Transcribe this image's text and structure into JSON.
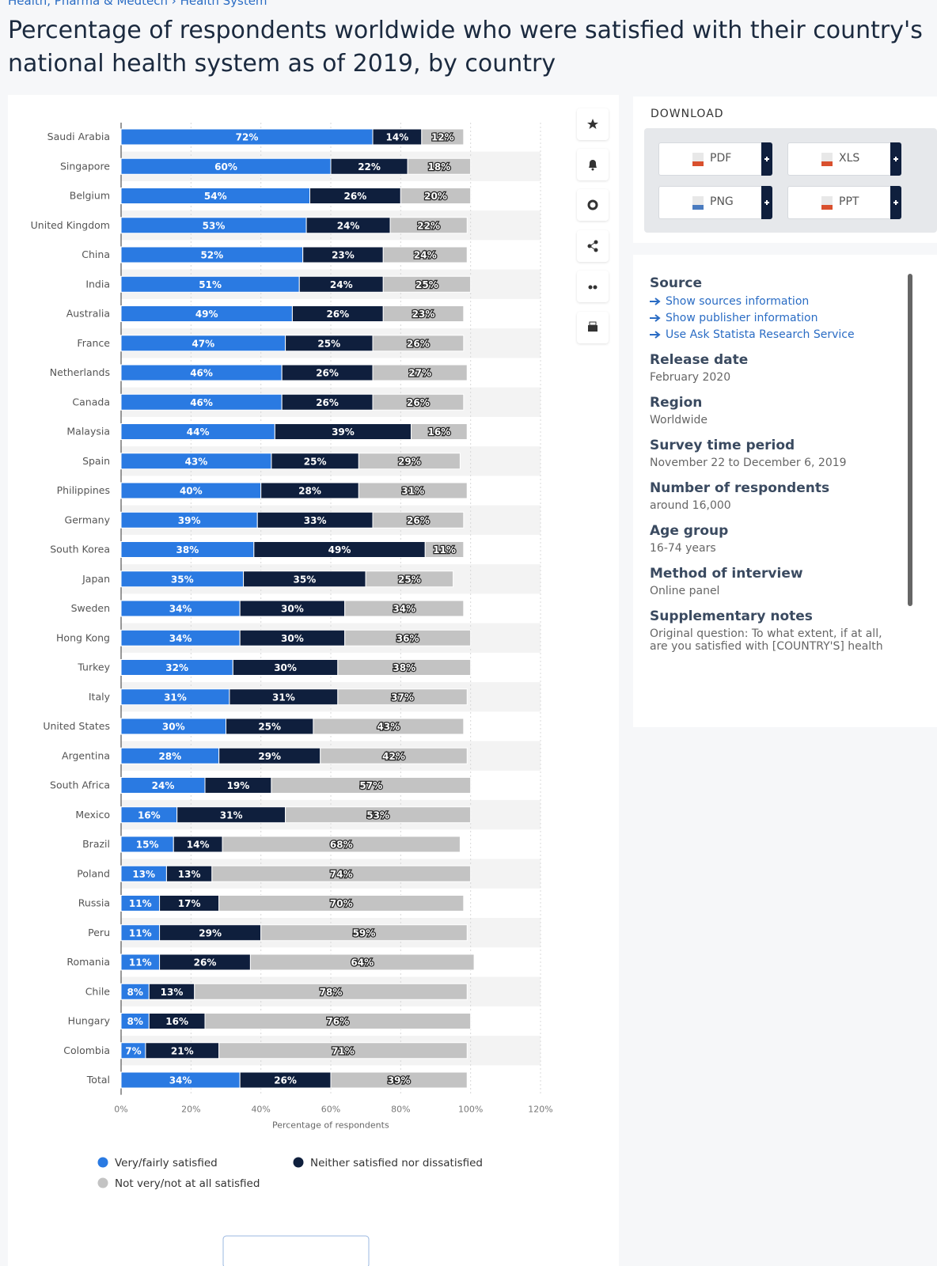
{
  "breadcrumb": [
    "Health, Pharma & Medtech",
    "Health System"
  ],
  "chart_data": {
    "type": "stacked-barh",
    "title": "Percentage of respondents worldwide who were satisfied with their country's national health system as of 2019, by country",
    "xlabel": "Percentage of respondents",
    "categories": [
      "Saudi Arabia",
      "Singapore",
      "Belgium",
      "United Kingdom",
      "China",
      "India",
      "Australia",
      "France",
      "Netherlands",
      "Canada",
      "Malaysia",
      "Spain",
      "Philippines",
      "Germany",
      "South Korea",
      "Japan",
      "Sweden",
      "Hong Kong",
      "Turkey",
      "Italy",
      "United States",
      "Argentina",
      "South Africa",
      "Mexico",
      "Brazil",
      "Poland",
      "Russia",
      "Peru",
      "Romania",
      "Chile",
      "Hungary",
      "Colombia",
      "Total"
    ],
    "series": [
      {
        "name": "Very/fairly satisfied",
        "color": "#2a7ae2",
        "values": [
          72,
          60,
          54,
          53,
          52,
          51,
          49,
          47,
          46,
          46,
          44,
          43,
          40,
          39,
          38,
          35,
          34,
          34,
          32,
          31,
          30,
          28,
          24,
          16,
          15,
          13,
          11,
          11,
          11,
          8,
          8,
          7,
          34
        ],
        "value_labels": [
          "72%",
          "60%",
          "54%",
          "53%",
          "52%",
          "51%",
          "49%",
          "47%",
          "46%",
          "46%",
          "44%",
          "43%",
          "40%",
          "39%",
          "38%",
          "35%",
          "34%",
          "34%",
          "32%",
          "31%",
          "30%",
          "28%",
          "24%",
          "16%",
          "15%",
          "13%",
          "11%",
          "11%",
          "11%",
          "8%",
          "8%",
          "7%",
          "34%"
        ]
      },
      {
        "name": "Neither satisfied nor dissatisfied",
        "color": "#0f1f3d",
        "values": [
          14,
          22,
          26,
          24,
          23,
          24,
          26,
          25,
          26,
          26,
          39,
          25,
          28,
          33,
          49,
          35,
          30,
          30,
          30,
          31,
          25,
          29,
          19,
          31,
          14,
          13,
          17,
          29,
          26,
          13,
          16,
          21,
          26
        ],
        "value_labels": [
          "14%",
          "22%",
          "26%",
          "24%",
          "23%",
          "24%",
          "26%",
          "25%",
          "26%",
          "26%",
          "39%",
          "25%",
          "28%",
          "33%",
          "49%",
          "35%",
          "30%",
          "30%",
          "30%",
          "31%",
          "25%",
          "29%",
          "19%",
          "31%",
          "14%",
          "13%",
          "17%",
          "29%",
          "26%",
          "13%",
          "16%",
          "21%",
          "26%"
        ]
      },
      {
        "name": "Not very/not at all satisfied",
        "color": "#c3c3c3",
        "values": [
          12,
          18,
          20,
          22,
          24,
          25,
          23,
          26,
          27,
          26,
          16,
          29,
          31,
          26,
          11,
          25,
          34,
          36,
          38,
          37,
          43,
          42,
          57,
          53,
          68,
          74,
          70,
          59,
          64,
          78,
          76,
          71,
          39
        ],
        "value_labels": [
          "12%",
          "18%",
          "20%",
          "22%",
          "24%",
          "25%",
          "23%",
          "26%",
          "27%",
          "26%",
          "16%",
          "29%",
          "31%",
          "26%",
          "11%",
          "25%",
          "34%",
          "36%",
          "38%",
          "37%",
          "43%",
          "42%",
          "57%",
          "53%",
          "68%",
          "74%",
          "70%",
          "59%",
          "64%",
          "78%",
          "76%",
          "71%",
          "39%"
        ]
      }
    ],
    "xlim": [
      0,
      120
    ],
    "xticks": [
      {
        "value": 0,
        "label": "0%"
      },
      {
        "value": 20,
        "label": "20%"
      },
      {
        "value": 40,
        "label": "40%"
      },
      {
        "value": 60,
        "label": "60%"
      },
      {
        "value": 80,
        "label": "80%"
      },
      {
        "value": 100,
        "label": "100%"
      },
      {
        "value": 120,
        "label": "120%"
      }
    ],
    "grid": true
  },
  "download": {
    "title": "DOWNLOAD",
    "formats": [
      "PDF",
      "XLS",
      "PNG",
      "PPT"
    ]
  },
  "info": {
    "source": {
      "title": "Source",
      "links": [
        "Show sources information",
        "Show publisher information",
        "Use Ask Statista Research Service"
      ]
    },
    "details": [
      {
        "label": "Release date",
        "value": "February 2020"
      },
      {
        "label": "Region",
        "value": "Worldwide"
      },
      {
        "label": "Survey time period",
        "value": "November 22 to December 6, 2019"
      },
      {
        "label": "Number of respondents",
        "value": "around 16,000"
      },
      {
        "label": "Age group",
        "value": "16-74 years"
      },
      {
        "label": "Method of interview",
        "value": "Online panel"
      },
      {
        "label": "Supplementary notes",
        "value": "Original question: To what extent, if at all, are you satisfied with [COUNTRY'S] health"
      }
    ]
  }
}
